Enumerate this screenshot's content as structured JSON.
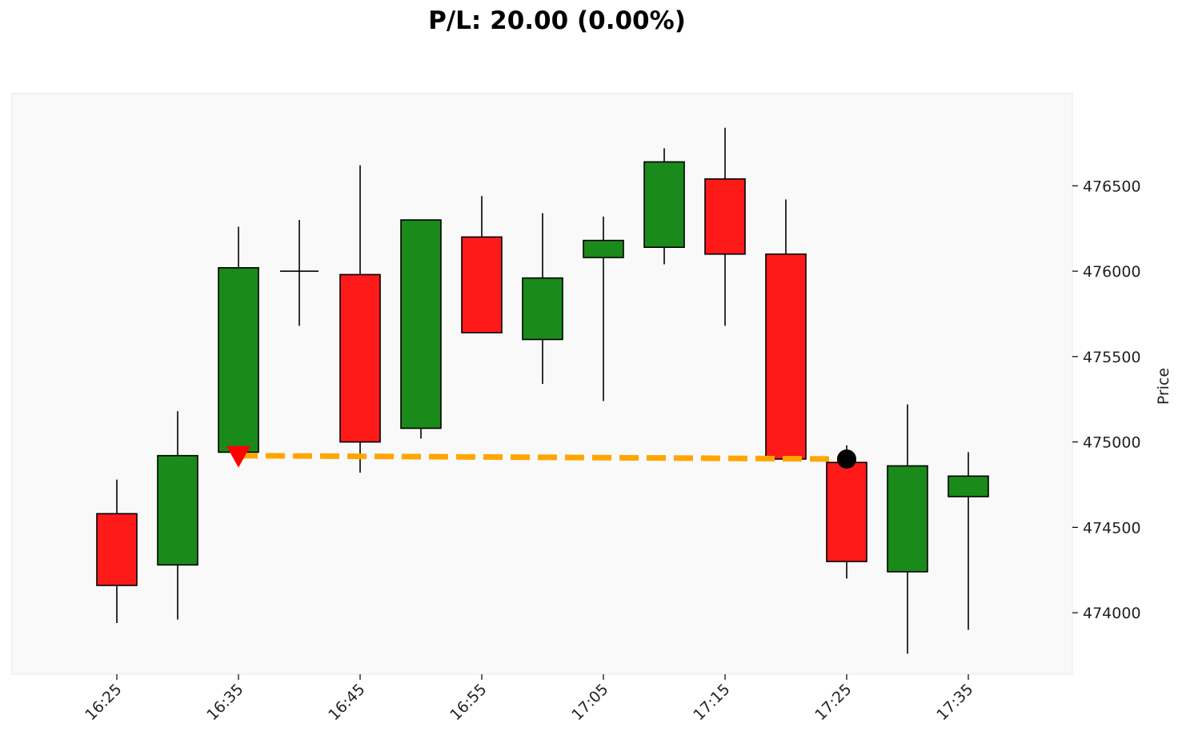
{
  "title": "P/L: 20.00 (0.00%)",
  "chart_data": {
    "type": "candlestick",
    "ylabel": "Price",
    "xlabel": "",
    "ylim": [
      473640,
      477040
    ],
    "grid": false,
    "colors": {
      "up": "#1a8a1a",
      "down": "#ff1a1a",
      "background": "#f9f9f9",
      "trade_line": "#ffa500",
      "entry_marker": "#ff0000",
      "exit_marker": "#000000"
    },
    "x_tick_labels": [
      "16:25",
      "16:35",
      "16:45",
      "16:55",
      "17:05",
      "17:15",
      "17:25",
      "17:35"
    ],
    "y_ticks": [
      474000,
      474500,
      475000,
      475500,
      476000,
      476500
    ],
    "candles": [
      {
        "time": "16:25",
        "open": 474580,
        "high": 474780,
        "low": 473940,
        "close": 474160
      },
      {
        "time": "16:30",
        "open": 474280,
        "high": 475180,
        "low": 473960,
        "close": 474920
      },
      {
        "time": "16:35",
        "open": 474940,
        "high": 476260,
        "low": 474880,
        "close": 476020
      },
      {
        "time": "16:40",
        "open": 476000,
        "high": 476300,
        "low": 475680,
        "close": 476000
      },
      {
        "time": "16:45",
        "open": 475980,
        "high": 476620,
        "low": 474820,
        "close": 475000
      },
      {
        "time": "16:50",
        "open": 475080,
        "high": 476300,
        "low": 475020,
        "close": 476300
      },
      {
        "time": "16:55",
        "open": 476200,
        "high": 476440,
        "low": 475640,
        "close": 475640
      },
      {
        "time": "17:00",
        "open": 475600,
        "high": 476340,
        "low": 475340,
        "close": 475960
      },
      {
        "time": "17:05",
        "open": 476080,
        "high": 476320,
        "low": 475240,
        "close": 476180
      },
      {
        "time": "17:10",
        "open": 476140,
        "high": 476720,
        "low": 476040,
        "close": 476640
      },
      {
        "time": "17:15",
        "open": 476540,
        "high": 476840,
        "low": 475680,
        "close": 476100
      },
      {
        "time": "17:20",
        "open": 476100,
        "high": 476420,
        "low": 474900,
        "close": 474900
      },
      {
        "time": "17:25",
        "open": 474880,
        "high": 474980,
        "low": 474200,
        "close": 474300
      },
      {
        "time": "17:30",
        "open": 474240,
        "high": 475220,
        "low": 473760,
        "close": 474860
      },
      {
        "time": "17:35",
        "open": 474680,
        "high": 474940,
        "low": 473900,
        "close": 474800
      }
    ],
    "trade": {
      "entry": {
        "time": "16:35",
        "price": 474920,
        "marker": "down-triangle"
      },
      "exit": {
        "time": "17:25",
        "price": 474900,
        "marker": "circle"
      }
    }
  }
}
